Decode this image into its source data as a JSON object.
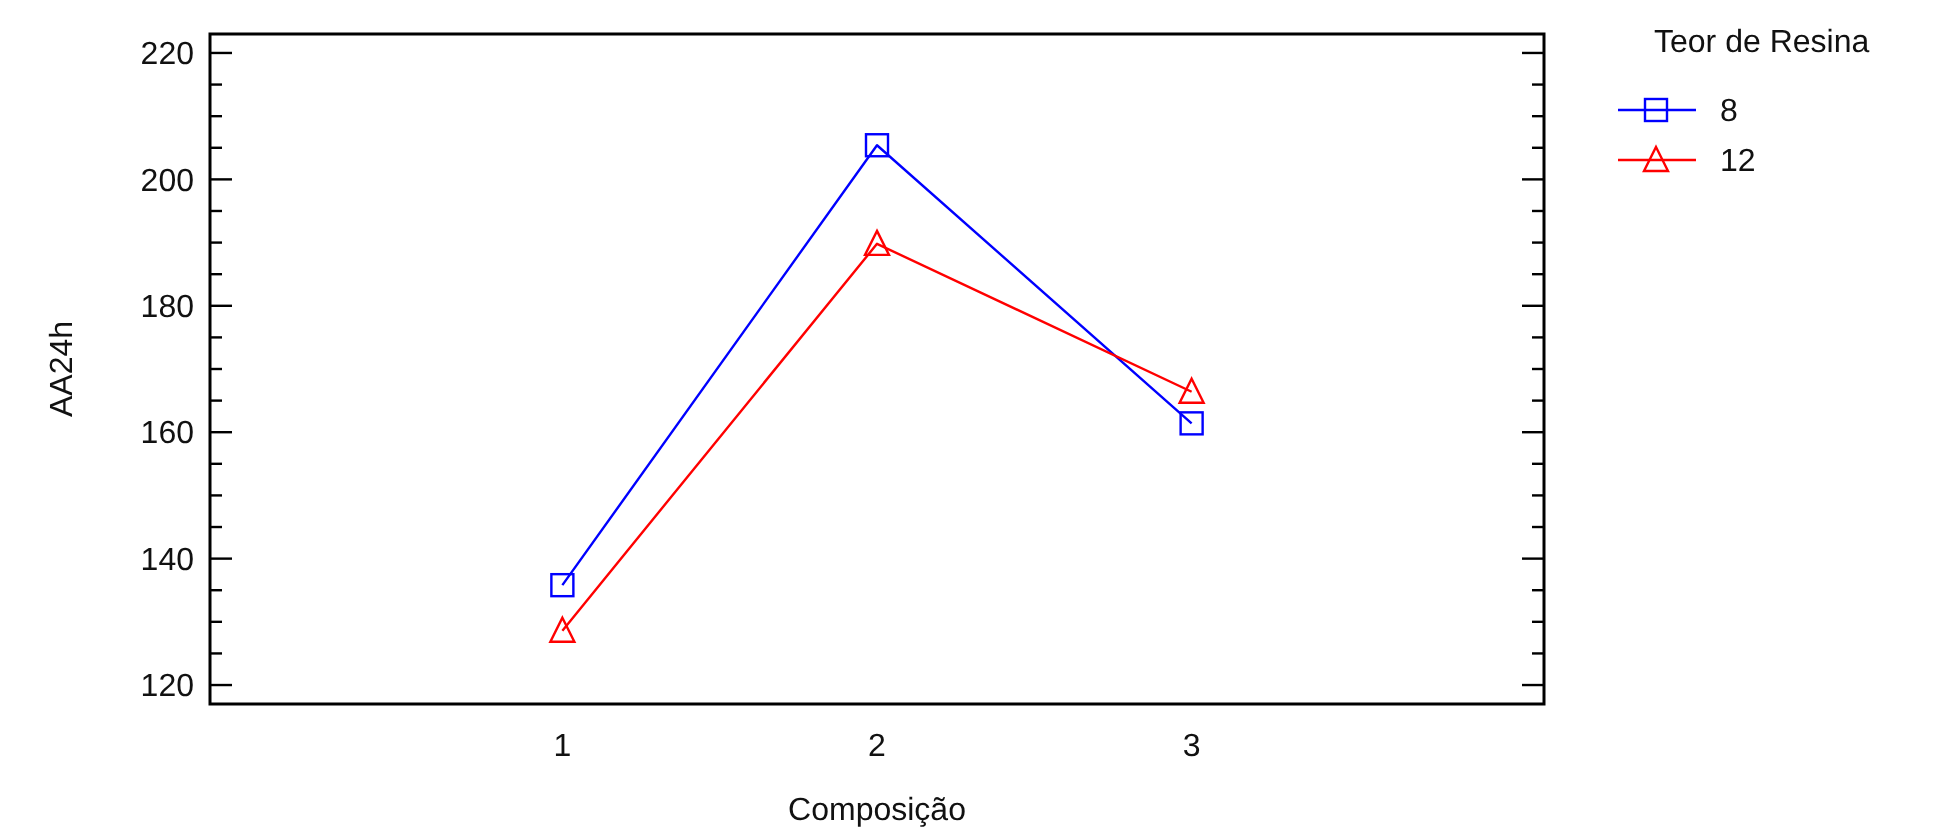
{
  "chart_data": {
    "type": "line",
    "xlabel": "Composição",
    "ylabel": "AA24h",
    "legend_title": "Teor de Resina",
    "x": [
      1,
      2,
      3
    ],
    "xlim": [
      -0.12,
      4.12
    ],
    "xticks": [
      1,
      2,
      3
    ],
    "ylim": [
      117,
      223
    ],
    "yticks": [
      120,
      140,
      160,
      180,
      200,
      220
    ],
    "grid": false,
    "legend": "top right",
    "series": [
      {
        "name": "8",
        "color": "#0000ff",
        "marker": "square",
        "values": [
          135.8,
          205.4,
          161.4
        ]
      },
      {
        "name": "12",
        "color": "#ff0000",
        "marker": "triangle",
        "values": [
          128.6,
          189.8,
          166.4
        ]
      }
    ]
  }
}
